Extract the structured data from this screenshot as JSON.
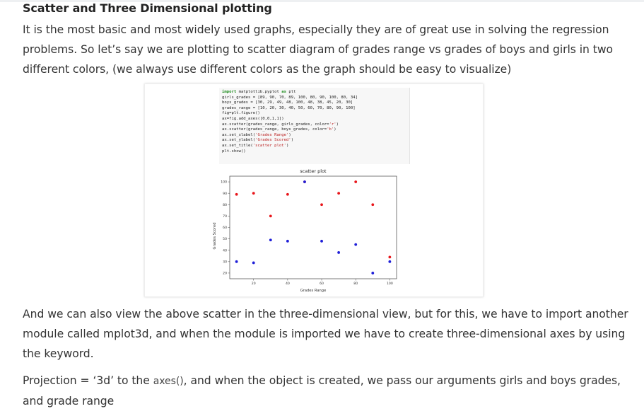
{
  "heading": "Scatter and Three Dimensional plotting",
  "paragraph1": "It is the most basic and most widely used graphs, especially they are of great use in solving the regression problems. So let’s say we are plotting to scatter diagram of grades range vs grades of boys and girls in two different colors, (we always use different colors as the graph should be easy to visualize)",
  "paragraph2": "And we can also view the above scatter in the three-dimensional view, but for this, we have to import another module called mplot3d, and when the module is imported we have to create three-dimensional axes by using the keyword.",
  "paragraph3": {
    "before": "Projection = ‘3d’ to the ",
    "code": "axes()",
    "after": ", and when the object is created, we pass our arguments girls and boys grades, and grade range"
  },
  "code_lines": [
    "import matplotlib.pyplot as plt",
    "girls_grades = [89, 90, 70, 89, 100, 80, 90, 100, 80, 34]",
    "boys_grades = [30, 29, 49, 48, 100, 48, 38, 45, 20, 30]",
    "grades_range = [10, 20, 30, 40, 50, 60, 70, 80, 90, 100]",
    "fig=plt.figure()",
    "ax=fig.add_axes([0,0,1,1])",
    "ax.scatter(grades_range, girls_grades, color='r')",
    "ax.scatter(grades_range, boys_grades, color='b')",
    "ax.set_xlabel('Grades Range')",
    "ax.set_ylabel('Grades Scored')",
    "ax.set_title('scatter plot')",
    "plt.show()"
  ],
  "chart_data": {
    "type": "scatter",
    "title": "scatter plot",
    "xlabel": "Grades Range",
    "ylabel": "Grades Scored",
    "xlim": [
      6,
      104
    ],
    "ylim": [
      15,
      105
    ],
    "xticks": [
      20,
      40,
      60,
      80,
      100
    ],
    "yticks": [
      20,
      30,
      40,
      50,
      60,
      70,
      80,
      90,
      100
    ],
    "grid": false,
    "x": [
      10,
      20,
      30,
      40,
      50,
      60,
      70,
      80,
      90,
      100
    ],
    "series": [
      {
        "color": "#e8161b",
        "values": [
          89,
          90,
          70,
          89,
          100,
          80,
          90,
          100,
          80,
          34
        ]
      },
      {
        "color": "#1f1fd8",
        "values": [
          30,
          29,
          49,
          48,
          100,
          48,
          38,
          45,
          20,
          30
        ]
      }
    ]
  }
}
